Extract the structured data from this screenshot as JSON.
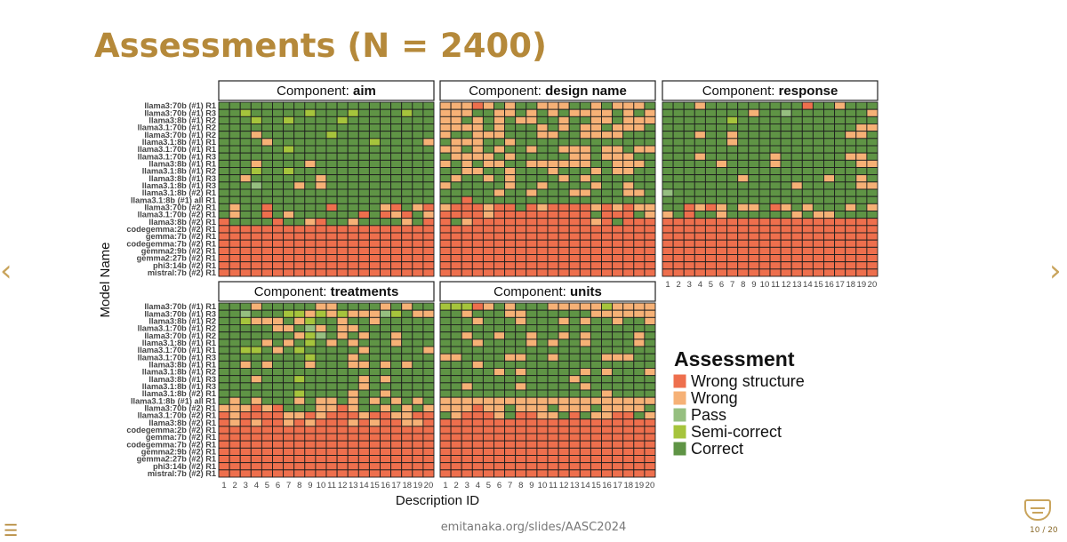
{
  "slide": {
    "title": "Assessments (N = 2400)",
    "footer_url": "emitanaka.org/slides/AASC2024",
    "counter": "10 / 20",
    "nav_prev_icon": "chevron-left-icon",
    "nav_next_icon": "chevron-right-icon",
    "menu_icon": "hamburger-icon"
  },
  "chart_data": {
    "type": "heatmap",
    "title": "",
    "xlabel": "Description ID",
    "ylabel": "Model Name",
    "x_categories": [
      "1",
      "2",
      "3",
      "4",
      "5",
      "6",
      "7",
      "8",
      "9",
      "10",
      "11",
      "12",
      "13",
      "14",
      "15",
      "16",
      "17",
      "18",
      "19",
      "20"
    ],
    "y_categories": [
      "llama3:70b (#1) R1",
      "llama3:70b (#1) R3",
      "llama3:8b (#1) R2",
      "llama3.1:70b (#1) R2",
      "llama3:70b (#1) R2",
      "llama3.1:8b (#1) R1",
      "llama3.1:70b (#1) R1",
      "llama3.1:70b (#1) R3",
      "llama3:8b (#1) R1",
      "llama3.1:8b (#1) R2",
      "llama3:8b (#1) R3",
      "llama3.1:8b (#1) R3",
      "llama3.1:8b (#2) R1",
      "llama3.1:8b (#1) all R1",
      "llama3:70b (#2) R1",
      "llama3.1:70b (#2) R1",
      "llama3:8b (#2) R1",
      "codegemma:2b (#2) R1",
      "gemma:7b (#2) R1",
      "codegemma:7b (#2) R1",
      "gemma2:9b (#2) R1",
      "gemma2:27b (#2) R1",
      "phi3:14b (#2) R1",
      "mistral:7b (#2) R1"
    ],
    "legend": {
      "title": "Assessment",
      "position": "right",
      "levels": [
        "Wrong structure",
        "Wrong",
        "Pass",
        "Semi-correct",
        "Correct"
      ],
      "colors": [
        "#ee6f4d",
        "#f6b176",
        "#96bf80",
        "#a6c43c",
        "#5f9445"
      ]
    },
    "facet_prefix": "Component: ",
    "facets": [
      {
        "component": "aim",
        "cells": [
          "44444444444444444444",
          "44344444344434444344",
          "44434434444344444444",
          "44444444444444444444",
          "44414444443444444444",
          "44441444444444344441",
          "44444434444444444444",
          "44444444444444444444",
          "44414444144444444444",
          "44434434444444444444",
          "44144444414444444444",
          "44424441414444444444",
          "44444444444444444444",
          "44444444444444444444",
          "41440444440444410410",
          "41440414444440401041",
          "04444044104414444140",
          "00000000000000000000",
          "00000000000000000000",
          "00000000000000000000",
          "00000000000000000000",
          "00000000000000000000",
          "00000000000000000000",
          "00000000000000000000"
        ]
      },
      {
        "component": "design name",
        "cells": [
          "11101414411144141114",
          "11144114141411114141",
          "11414141144144114111",
          "11114144414141141114",
          "14411144411441111444",
          "41114414444444444444",
          "11414144144111411411",
          "41111414444411411144",
          "14141144111111441114",
          "44114414441444141144",
          "41441414444141444444",
          "14444414414444144144",
          "44444144144411444114",
          "44044444444444444444",
          "10001004010000101011",
          "00001000000000400041",
          "04100000000000104000",
          "00000000000000000000",
          "00000000000000000000",
          "00000000000000000000",
          "00000000000000000000",
          "00000000000000000000",
          "00000000000000000000",
          "00000000000000000000"
        ]
      },
      {
        "component": "response",
        "cells": [
          "44414444444440441444",
          "44444444144244444441",
          "44444434444444444444",
          "44444444444444444411",
          "44414414444444444114",
          "44444414444444444444",
          "44444444444444444444",
          "44414444441444444114",
          "44444144441444444411",
          "44444444444444444444",
          "44444441444444414414",
          "44444444444414444411",
          "24444444444444444444",
          "44444444444444444444",
          "44010141140141444141",
          "14044144444414114444",
          "00000000000000000000",
          "00000000000000000000",
          "00000000000000000000",
          "00000000000000000000",
          "00000000000000000000",
          "00000000000000000000",
          "00000000000000000000",
          "00000000000000000000"
        ]
      },
      {
        "component": "treatments",
        "cells": [
          "44414444411444414144",
          "44244433131311123411",
          "44311141344144144444",
          "44444114214114444444",
          "44444441324141441444",
          "44441414341414441444",
          "44334143444441444441",
          "44444444344414444444",
          "44141444144411414144",
          "44444444444444444444",
          "44414443444441414444",
          "44444444444441444444",
          "44444443444414414444",
          "41414441411414141414",
          "11101044411014414141",
          "01000011010001001100",
          "01010010100010100110",
          "00000000000000000000",
          "00000000000000000000",
          "00000000000000000000",
          "00000000000000000000",
          "00000000000000000000",
          "00000000000000000000",
          "00000000000000000000"
        ]
      },
      {
        "component": "units",
        "cells": [
          "33301414441111131111",
          "44144411444444111111",
          "44414441444141441441",
          "44444444444444444444",
          "44144144144141444414",
          "44414444141441444414",
          "44444444444444444444",
          "11444411441444411144",
          "44414444444444444444",
          "44444141444441414441",
          "44444444444414444444",
          "44144441444441444444",
          "44444444444444414444",
          "11111111111111111111",
          "11101141114111411114",
          "41000140011404110041",
          "00000000000000000000",
          "00000000000000000000",
          "00000000000000000000",
          "00000000000000000000",
          "00000000000000000000",
          "00000000000000000000",
          "00000000000000000000",
          "00000000000000000000"
        ]
      }
    ]
  }
}
